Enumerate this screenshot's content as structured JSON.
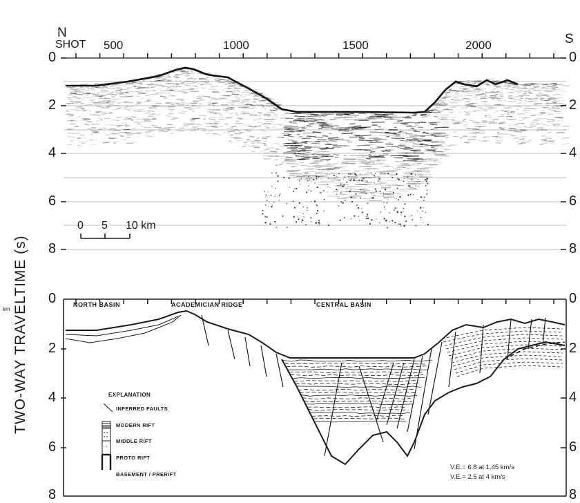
{
  "header": {
    "north": "N",
    "south": "S",
    "shot_label": "SHOT",
    "shot_numbers": [
      "500",
      "1000",
      "1500",
      "2000"
    ]
  },
  "y_axis": {
    "label": "TWO-WAY TRAVELTIME (s)",
    "top_ticks": [
      "0",
      "2",
      "4",
      "6",
      "8"
    ],
    "bottom_ticks": [
      "0",
      "2",
      "4",
      "6",
      "8"
    ]
  },
  "scale_bar": {
    "ticks": [
      "0",
      "5",
      "10 km"
    ],
    "stray": "km"
  },
  "interpretation": {
    "places": [
      "NORTH BASIN",
      "ACADEMICIAN RIDGE",
      "CENTRAL BASIN"
    ],
    "explanation_title": "EXPLANATION",
    "legend": [
      {
        "key": "faults",
        "label": "INFERRED FAULTS"
      },
      {
        "key": "modern",
        "label": "MODERN RIFT"
      },
      {
        "key": "middle",
        "label": "MIDDLE RIFT"
      },
      {
        "key": "proto",
        "label": "PROTO RIFT"
      },
      {
        "key": "basement",
        "label": "BASEMENT / PRERIFT"
      }
    ],
    "ve_1": "V.E.= 6.8 at 1.45 km/s",
    "ve_2": "V.E.= 2.5 at 4 km/s"
  }
}
